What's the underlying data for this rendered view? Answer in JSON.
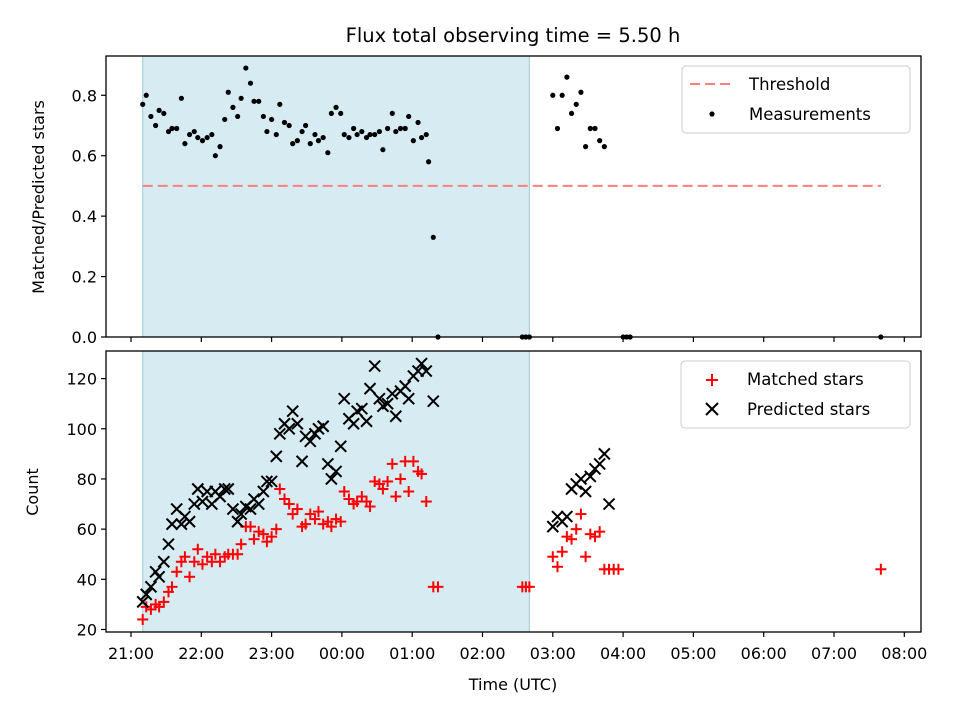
{
  "chart_data": [
    {
      "type": "scatter",
      "title": "Flux total observing time = 5.50 h",
      "xlabel": "",
      "ylabel": "Matched/Predicted stars",
      "ylim": [
        0,
        0.93
      ],
      "yticks": [
        "0.0",
        "0.2",
        "0.4",
        "0.6",
        "0.8"
      ],
      "grid": false,
      "legend_position": "top-right",
      "shaded_span": [
        "21:10",
        "02:40"
      ],
      "threshold": {
        "name": "Threshold",
        "value": 0.5,
        "x_start": "21:10",
        "x_end": "07:40",
        "color": "#ff7f7f"
      },
      "series": [
        {
          "name": "Measurements",
          "color": "#000000",
          "points": [
            [
              "21:10",
              0.77
            ],
            [
              "21:13",
              0.8
            ],
            [
              "21:17",
              0.73
            ],
            [
              "21:21",
              0.7
            ],
            [
              "21:24",
              0.75
            ],
            [
              "21:28",
              0.74
            ],
            [
              "21:32",
              0.68
            ],
            [
              "21:35",
              0.69
            ],
            [
              "21:39",
              0.69
            ],
            [
              "21:43",
              0.79
            ],
            [
              "21:46",
              0.64
            ],
            [
              "21:50",
              0.67
            ],
            [
              "21:54",
              0.68
            ],
            [
              "21:57",
              0.66
            ],
            [
              "22:01",
              0.65
            ],
            [
              "22:05",
              0.66
            ],
            [
              "22:09",
              0.67
            ],
            [
              "22:12",
              0.6
            ],
            [
              "22:16",
              0.63
            ],
            [
              "22:20",
              0.72
            ],
            [
              "22:23",
              0.81
            ],
            [
              "22:27",
              0.76
            ],
            [
              "22:31",
              0.73
            ],
            [
              "22:34",
              0.79
            ],
            [
              "22:38",
              0.89
            ],
            [
              "22:42",
              0.84
            ],
            [
              "22:45",
              0.78
            ],
            [
              "22:49",
              0.78
            ],
            [
              "22:53",
              0.73
            ],
            [
              "22:56",
              0.68
            ],
            [
              "23:00",
              0.72
            ],
            [
              "23:04",
              0.67
            ],
            [
              "23:07",
              0.77
            ],
            [
              "23:11",
              0.71
            ],
            [
              "23:15",
              0.7
            ],
            [
              "23:18",
              0.64
            ],
            [
              "23:22",
              0.65
            ],
            [
              "23:26",
              0.68
            ],
            [
              "23:29",
              0.7
            ],
            [
              "23:33",
              0.64
            ],
            [
              "23:37",
              0.67
            ],
            [
              "23:40",
              0.65
            ],
            [
              "23:44",
              0.66
            ],
            [
              "23:48",
              0.61
            ],
            [
              "23:51",
              0.74
            ],
            [
              "23:55",
              0.76
            ],
            [
              "23:59",
              0.74
            ],
            [
              "00:02",
              0.67
            ],
            [
              "00:06",
              0.66
            ],
            [
              "00:10",
              0.69
            ],
            [
              "00:13",
              0.67
            ],
            [
              "00:17",
              0.68
            ],
            [
              "00:21",
              0.66
            ],
            [
              "00:24",
              0.67
            ],
            [
              "00:28",
              0.67
            ],
            [
              "00:32",
              0.68
            ],
            [
              "00:35",
              0.62
            ],
            [
              "00:39",
              0.69
            ],
            [
              "00:43",
              0.74
            ],
            [
              "00:46",
              0.68
            ],
            [
              "00:50",
              0.69
            ],
            [
              "00:54",
              0.69
            ],
            [
              "00:57",
              0.73
            ],
            [
              "01:01",
              0.65
            ],
            [
              "01:05",
              0.71
            ],
            [
              "01:08",
              0.66
            ],
            [
              "01:12",
              0.67
            ],
            [
              "01:14",
              0.58
            ],
            [
              "01:18",
              0.33
            ],
            [
              "01:22",
              0.0
            ],
            [
              "02:34",
              0.0
            ],
            [
              "02:37",
              0.0
            ],
            [
              "02:40",
              0.0
            ],
            [
              "03:00",
              0.8
            ],
            [
              "03:04",
              0.69
            ],
            [
              "03:08",
              0.8
            ],
            [
              "03:12",
              0.86
            ],
            [
              "03:16",
              0.74
            ],
            [
              "03:20",
              0.77
            ],
            [
              "03:24",
              0.81
            ],
            [
              "03:28",
              0.63
            ],
            [
              "03:32",
              0.69
            ],
            [
              "03:36",
              0.69
            ],
            [
              "03:40",
              0.65
            ],
            [
              "03:44",
              0.63
            ],
            [
              "04:00",
              0.0
            ],
            [
              "04:03",
              0.0
            ],
            [
              "04:06",
              0.0
            ],
            [
              "07:40",
              0.0
            ]
          ]
        }
      ]
    },
    {
      "type": "scatter",
      "title": "",
      "xlabel": "Time (UTC)",
      "ylabel": "Count",
      "ylim": [
        19,
        131
      ],
      "yticks": [
        "20",
        "40",
        "60",
        "80",
        "100",
        "120"
      ],
      "xticks": [
        "21:00",
        "22:00",
        "23:00",
        "00:00",
        "01:00",
        "02:00",
        "03:00",
        "04:00",
        "05:00",
        "06:00",
        "07:00",
        "08:00"
      ],
      "grid": false,
      "legend_position": "top-right",
      "shaded_span": [
        "21:10",
        "02:40"
      ],
      "series": [
        {
          "name": "Matched stars",
          "color": "#ff0000",
          "marker": "+",
          "points": [
            [
              "21:10",
              24
            ],
            [
              "21:13",
              29
            ],
            [
              "21:17",
              28
            ],
            [
              "21:21",
              30
            ],
            [
              "21:24",
              29
            ],
            [
              "21:28",
              31
            ],
            [
              "21:32",
              35
            ],
            [
              "21:35",
              37
            ],
            [
              "21:39",
              43
            ],
            [
              "21:43",
              47
            ],
            [
              "21:46",
              49
            ],
            [
              "21:50",
              41
            ],
            [
              "21:54",
              47
            ],
            [
              "21:57",
              52
            ],
            [
              "22:01",
              46
            ],
            [
              "22:05",
              49
            ],
            [
              "22:09",
              47
            ],
            [
              "22:12",
              50
            ],
            [
              "22:16",
              47
            ],
            [
              "22:20",
              49
            ],
            [
              "22:23",
              50
            ],
            [
              "22:27",
              50
            ],
            [
              "22:31",
              50
            ],
            [
              "22:34",
              54
            ],
            [
              "22:38",
              61
            ],
            [
              "22:42",
              61
            ],
            [
              "22:45",
              56
            ],
            [
              "22:49",
              59
            ],
            [
              "22:53",
              58
            ],
            [
              "22:56",
              55
            ],
            [
              "23:00",
              57
            ],
            [
              "23:04",
              60
            ],
            [
              "23:07",
              76
            ],
            [
              "23:11",
              72
            ],
            [
              "23:15",
              70
            ],
            [
              "23:18",
              66
            ],
            [
              "23:22",
              68
            ],
            [
              "23:26",
              61
            ],
            [
              "23:29",
              62
            ],
            [
              "23:33",
              66
            ],
            [
              "23:37",
              64
            ],
            [
              "23:40",
              67
            ],
            [
              "23:44",
              62
            ],
            [
              "23:48",
              63
            ],
            [
              "23:51",
              61
            ],
            [
              "23:55",
              64
            ],
            [
              "23:59",
              63
            ],
            [
              "00:02",
              75
            ],
            [
              "00:06",
              72
            ],
            [
              "00:10",
              70
            ],
            [
              "00:13",
              71
            ],
            [
              "00:17",
              73
            ],
            [
              "00:21",
              71
            ],
            [
              "00:24",
              69
            ],
            [
              "00:28",
              79
            ],
            [
              "00:32",
              78
            ],
            [
              "00:35",
              76
            ],
            [
              "00:39",
              79
            ],
            [
              "00:43",
              86
            ],
            [
              "00:46",
              73
            ],
            [
              "00:50",
              80
            ],
            [
              "00:54",
              87
            ],
            [
              "00:57",
              75
            ],
            [
              "01:01",
              87
            ],
            [
              "01:05",
              83
            ],
            [
              "01:08",
              82
            ],
            [
              "01:12",
              71
            ],
            [
              "01:18",
              37
            ],
            [
              "01:22",
              37
            ],
            [
              "02:34",
              37
            ],
            [
              "02:37",
              37
            ],
            [
              "02:40",
              37
            ],
            [
              "03:00",
              49
            ],
            [
              "03:04",
              45
            ],
            [
              "03:08",
              51
            ],
            [
              "03:12",
              57
            ],
            [
              "03:16",
              56
            ],
            [
              "03:20",
              60
            ],
            [
              "03:24",
              66
            ],
            [
              "03:28",
              49
            ],
            [
              "03:32",
              58
            ],
            [
              "03:36",
              57
            ],
            [
              "03:40",
              59
            ],
            [
              "03:44",
              44
            ],
            [
              "03:48",
              44
            ],
            [
              "03:52",
              44
            ],
            [
              "03:56",
              44
            ],
            [
              "07:40",
              44
            ]
          ]
        },
        {
          "name": "Predicted stars",
          "color": "#000000",
          "marker": "x",
          "points": [
            [
              "21:10",
              31
            ],
            [
              "21:13",
              34
            ],
            [
              "21:17",
              37
            ],
            [
              "21:21",
              43
            ],
            [
              "21:24",
              41
            ],
            [
              "21:28",
              47
            ],
            [
              "21:32",
              54
            ],
            [
              "21:35",
              62
            ],
            [
              "21:39",
              68
            ],
            [
              "21:43",
              62
            ],
            [
              "21:46",
              65
            ],
            [
              "21:50",
              63
            ],
            [
              "21:54",
              70
            ],
            [
              "21:57",
              76
            ],
            [
              "22:01",
              71
            ],
            [
              "22:05",
              75
            ],
            [
              "22:09",
              70
            ],
            [
              "22:12",
              75
            ],
            [
              "22:16",
              73
            ],
            [
              "22:20",
              76
            ],
            [
              "22:23",
              76
            ],
            [
              "22:27",
              68
            ],
            [
              "22:31",
              63
            ],
            [
              "22:34",
              66
            ],
            [
              "22:38",
              69
            ],
            [
              "22:42",
              68
            ],
            [
              "22:45",
              72
            ],
            [
              "22:49",
              70
            ],
            [
              "22:53",
              75
            ],
            [
              "22:56",
              79
            ],
            [
              "23:00",
              79
            ],
            [
              "23:04",
              89
            ],
            [
              "23:07",
              98
            ],
            [
              "23:11",
              102
            ],
            [
              "23:15",
              100
            ],
            [
              "23:18",
              107
            ],
            [
              "23:22",
              102
            ],
            [
              "23:26",
              87
            ],
            [
              "23:29",
              97
            ],
            [
              "23:33",
              95
            ],
            [
              "23:37",
              98
            ],
            [
              "23:40",
              100
            ],
            [
              "23:44",
              101
            ],
            [
              "23:48",
              86
            ],
            [
              "23:51",
              80
            ],
            [
              "23:55",
              83
            ],
            [
              "23:59",
              93
            ],
            [
              "00:02",
              112
            ],
            [
              "00:06",
              104
            ],
            [
              "00:10",
              102
            ],
            [
              "00:13",
              107
            ],
            [
              "00:17",
              108
            ],
            [
              "00:21",
              103
            ],
            [
              "00:24",
              116
            ],
            [
              "00:28",
              125
            ],
            [
              "00:32",
              112
            ],
            [
              "00:35",
              109
            ],
            [
              "00:39",
              110
            ],
            [
              "00:43",
              114
            ],
            [
              "00:46",
              105
            ],
            [
              "00:50",
              115
            ],
            [
              "00:54",
              117
            ],
            [
              "00:57",
              112
            ],
            [
              "01:01",
              121
            ],
            [
              "01:05",
              123
            ],
            [
              "01:08",
              126
            ],
            [
              "01:12",
              123
            ],
            [
              "01:18",
              111
            ],
            [
              "03:00",
              61
            ],
            [
              "03:04",
              65
            ],
            [
              "03:08",
              63
            ],
            [
              "03:12",
              65
            ],
            [
              "03:16",
              76
            ],
            [
              "03:20",
              78
            ],
            [
              "03:24",
              80
            ],
            [
              "03:28",
              75
            ],
            [
              "03:32",
              81
            ],
            [
              "03:36",
              84
            ],
            [
              "03:40",
              86
            ],
            [
              "03:44",
              90
            ],
            [
              "03:48",
              70
            ]
          ]
        }
      ]
    }
  ]
}
